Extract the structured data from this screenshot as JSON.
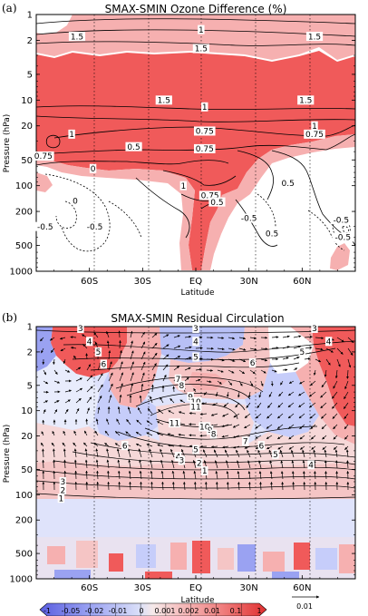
{
  "chart_data": [
    {
      "type": "contour",
      "panel_label": "(a)",
      "title": "SMAX-SMIN Ozone Difference (%)",
      "xlabel": "Latitude",
      "ylabel": "Pressure (hPa)",
      "y_scale": "log",
      "y_reversed": true,
      "xlim": [
        -90,
        90
      ],
      "ylim": [
        1000,
        1
      ],
      "x_ticks": [
        "60S",
        "30S",
        "EQ",
        "30N",
        "60N"
      ],
      "x_tick_values": [
        -60,
        -30,
        0,
        30,
        60
      ],
      "y_ticks": [
        "1",
        "2",
        "5",
        "10",
        "20",
        "50",
        "100",
        "200",
        "500",
        "1000"
      ],
      "y_tick_values": [
        1,
        2,
        5,
        10,
        20,
        50,
        100,
        200,
        500,
        1000
      ],
      "vertical_gridlines": [
        -60,
        -30,
        0,
        30,
        60
      ],
      "contour_labels": [
        {
          "text": "1.5",
          "x": -67,
          "y": 1.8
        },
        {
          "text": "1",
          "x": 3,
          "y": 1.5
        },
        {
          "text": "1.5",
          "x": 3,
          "y": 2.5
        },
        {
          "text": "1.5",
          "x": 67,
          "y": 1.8
        },
        {
          "text": "1.5",
          "x": -18,
          "y": 10
        },
        {
          "text": "1",
          "x": 5,
          "y": 12
        },
        {
          "text": "1.5",
          "x": 62,
          "y": 10
        },
        {
          "text": "1",
          "x": -70,
          "y": 25
        },
        {
          "text": "0.75",
          "x": 5,
          "y": 23
        },
        {
          "text": "1",
          "x": 67,
          "y": 20
        },
        {
          "text": "0.75",
          "x": 67,
          "y": 25
        },
        {
          "text": "0.5",
          "x": -35,
          "y": 35
        },
        {
          "text": "0.75",
          "x": 5,
          "y": 37
        },
        {
          "text": "0.75",
          "x": -86,
          "y": 45
        },
        {
          "text": "0",
          "x": -58,
          "y": 63
        },
        {
          "text": "1",
          "x": -7,
          "y": 100
        },
        {
          "text": "0.75",
          "x": 8,
          "y": 130
        },
        {
          "text": "0.5",
          "x": 12,
          "y": 155
        },
        {
          "text": "0.5",
          "x": 52,
          "y": 93
        },
        {
          "text": "0",
          "x": -68,
          "y": 150
        },
        {
          "text": "-0.5",
          "x": -85,
          "y": 300
        },
        {
          "text": "-0.5",
          "x": -57,
          "y": 300
        },
        {
          "text": "-0.5",
          "x": 30,
          "y": 240
        },
        {
          "text": "0.5",
          "x": 43,
          "y": 360
        },
        {
          "text": "-0.5",
          "x": 82,
          "y": 250
        },
        {
          "text": "-0.5",
          "x": 83,
          "y": 400
        }
      ]
    },
    {
      "type": "vector-field",
      "panel_label": "(b)",
      "title": "SMAX-SMIN Residual Circulation",
      "xlabel": "Latitude",
      "ylabel": "Pressure (hPa)",
      "y_scale": "log",
      "y_reversed": true,
      "xlim": [
        -90,
        90
      ],
      "ylim": [
        1000,
        1
      ],
      "x_ticks": [
        "60S",
        "30S",
        "EQ",
        "30N",
        "60N"
      ],
      "x_tick_values": [
        -60,
        -30,
        0,
        30,
        60
      ],
      "y_ticks": [
        "1",
        "2",
        "5",
        "10",
        "20",
        "50",
        "100",
        "200",
        "500",
        "1000"
      ],
      "y_tick_values": [
        1,
        2,
        5,
        10,
        20,
        50,
        100,
        200,
        500,
        1000
      ],
      "vertical_gridlines": [
        -60,
        -30,
        0,
        30,
        60
      ],
      "reference_vector_label": "0.01",
      "colorbar_labels": [
        "-1",
        "-0.05",
        "-0.02",
        "-0.01",
        "0",
        "0.001",
        "0.002",
        "0.01",
        "0.1",
        "1"
      ],
      "contour_labels": [
        {
          "text": "3",
          "x": -65,
          "y": 1.05
        },
        {
          "text": "3",
          "x": 0,
          "y": 1.05
        },
        {
          "text": "3",
          "x": 67,
          "y": 1.05
        },
        {
          "text": "4",
          "x": -60,
          "y": 1.5
        },
        {
          "text": "4",
          "x": 0,
          "y": 1.5
        },
        {
          "text": "4",
          "x": 75,
          "y": 1.5
        },
        {
          "text": "5",
          "x": -55,
          "y": 2
        },
        {
          "text": "5",
          "x": 0,
          "y": 2.3
        },
        {
          "text": "5",
          "x": 60,
          "y": 2
        },
        {
          "text": "6",
          "x": -52,
          "y": 2.8
        },
        {
          "text": "6",
          "x": 32,
          "y": 2.7
        },
        {
          "text": "7",
          "x": -10,
          "y": 4.2
        },
        {
          "text": "8",
          "x": -8,
          "y": 5
        },
        {
          "text": "9",
          "x": -3,
          "y": 6.8
        },
        {
          "text": "10",
          "x": 0,
          "y": 7.8
        },
        {
          "text": "11",
          "x": 0,
          "y": 9
        },
        {
          "text": "11",
          "x": -12,
          "y": 14
        },
        {
          "text": "10",
          "x": 5,
          "y": 15.5
        },
        {
          "text": "9",
          "x": 8,
          "y": 17
        },
        {
          "text": "8",
          "x": 10,
          "y": 19
        },
        {
          "text": "7",
          "x": 28,
          "y": 23
        },
        {
          "text": "6",
          "x": -40,
          "y": 26
        },
        {
          "text": "6",
          "x": 37,
          "y": 26
        },
        {
          "text": "5",
          "x": 0,
          "y": 29
        },
        {
          "text": "5",
          "x": 45,
          "y": 33
        },
        {
          "text": "4",
          "x": -10,
          "y": 35
        },
        {
          "text": "4",
          "x": 65,
          "y": 44
        },
        {
          "text": "3",
          "x": -8,
          "y": 39
        },
        {
          "text": "2",
          "x": 2,
          "y": 42
        },
        {
          "text": "1",
          "x": 5,
          "y": 52
        },
        {
          "text": "3",
          "x": -75,
          "y": 70
        },
        {
          "text": "2",
          "x": -75,
          "y": 88
        },
        {
          "text": "1",
          "x": -76,
          "y": 110
        }
      ]
    }
  ],
  "colors": {
    "positive_strong": "#f05a5a",
    "positive_light": "#f6b0b0",
    "negative_light": "#c6cdfa",
    "negative_strong": "#8890ee",
    "contour": "#000000",
    "frame": "#000000"
  }
}
